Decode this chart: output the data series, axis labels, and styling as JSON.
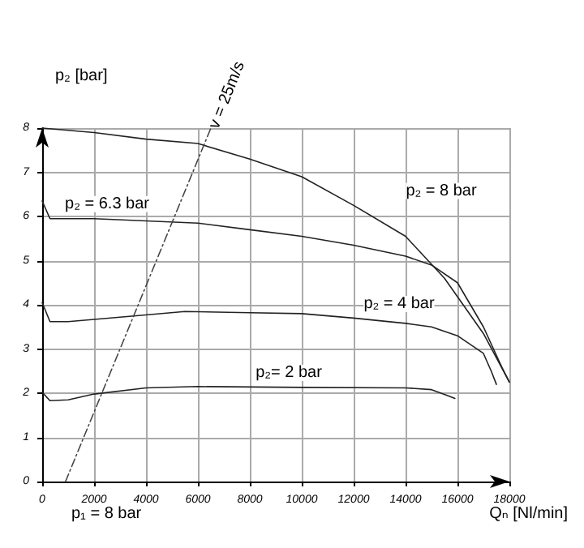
{
  "chart_data": {
    "type": "line",
    "xlabel": "Qₙ [Nl/min]",
    "ylabel": "p₂ [bar]",
    "xlim": [
      0,
      18000
    ],
    "xticks": [
      0,
      2000,
      4000,
      6000,
      8000,
      10000,
      12000,
      14000,
      16000,
      18000
    ],
    "ylim": [
      0,
      8
    ],
    "yticks": [
      0,
      1,
      2,
      3,
      4,
      5,
      6,
      7,
      8
    ],
    "grid": true,
    "marker": "none",
    "line_style": "solid",
    "series": [
      {
        "name": "p₂ = 8 bar",
        "color": "#222222",
        "x": [
          0,
          2000,
          4000,
          6000,
          8000,
          10000,
          12000,
          14000,
          15500,
          17000,
          18000
        ],
        "values": [
          8,
          7.9,
          7.75,
          7.65,
          7.3,
          6.9,
          6.25,
          5.55,
          4.6,
          3.35,
          2.25
        ]
      },
      {
        "name": "p₂ = 6.3 bar",
        "color": "#222222",
        "x": [
          0,
          300,
          2000,
          4000,
          6000,
          8000,
          10000,
          12000,
          14000,
          15000,
          16000,
          17000,
          17700,
          18000
        ],
        "values": [
          6.35,
          5.95,
          5.95,
          5.9,
          5.85,
          5.7,
          5.55,
          5.35,
          5.1,
          4.9,
          4.5,
          3.5,
          2.6,
          2.25
        ]
      },
      {
        "name": "p₂ = 4 bar",
        "color": "#222222",
        "x": [
          0,
          300,
          1000,
          3000,
          5500,
          8000,
          10000,
          12000,
          14000,
          15000,
          16000,
          17000,
          17300,
          17500
        ],
        "values": [
          4.05,
          3.62,
          3.62,
          3.72,
          3.85,
          3.82,
          3.8,
          3.7,
          3.58,
          3.5,
          3.3,
          2.9,
          2.5,
          2.2
        ]
      },
      {
        "name": "p₂= 2 bar",
        "color": "#222222",
        "x": [
          0,
          300,
          1000,
          2000,
          4000,
          6000,
          10000,
          14000,
          15000,
          15600,
          15900
        ],
        "values": [
          2.02,
          1.83,
          1.85,
          1.98,
          2.12,
          2.15,
          2.13,
          2.12,
          2.08,
          1.95,
          1.88
        ]
      },
      {
        "name": "v = 25m/s",
        "color": "#444444",
        "line_style": "dashed",
        "x": [
          900,
          6500
        ],
        "values": [
          0,
          8
        ]
      }
    ],
    "annotations": [
      "p₁ = 8 bar"
    ]
  }
}
